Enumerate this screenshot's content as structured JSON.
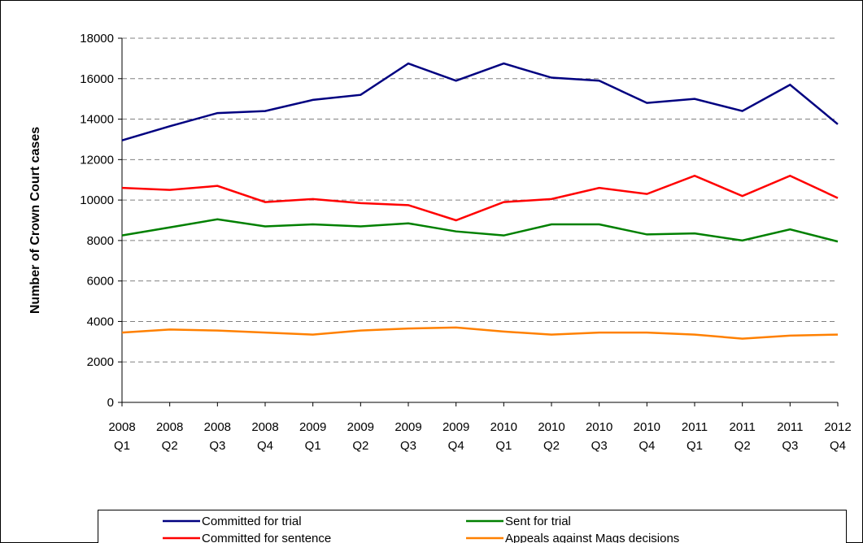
{
  "chart_data": {
    "type": "line",
    "y_label": "Number of Crown Court cases",
    "categories": [
      "2008 Q1",
      "2008 Q2",
      "2008 Q3",
      "2008 Q4",
      "2009 Q1",
      "2009 Q2",
      "2009 Q3",
      "2009 Q4",
      "2010 Q1",
      "2010 Q2",
      "2010 Q3",
      "2010 Q4",
      "2011 Q1",
      "2011 Q2",
      "2011 Q3",
      "2012 Q4"
    ],
    "series": [
      {
        "name": "Committed for trial",
        "color": "#000080",
        "values": [
          12950,
          13650,
          14300,
          14400,
          14950,
          15200,
          16750,
          15900,
          16750,
          16050,
          15900,
          14800,
          15000,
          14400,
          15700,
          13750
        ]
      },
      {
        "name": "Sent for trial",
        "color": "#008000",
        "values": [
          8250,
          8650,
          9050,
          8700,
          8800,
          8700,
          8850,
          8450,
          8250,
          8800,
          8800,
          8300,
          8350,
          8000,
          8550,
          7950
        ]
      },
      {
        "name": "Committed for sentence",
        "color": "#ff0000",
        "values": [
          10600,
          10500,
          10700,
          9900,
          10050,
          9850,
          9750,
          9000,
          9900,
          10050,
          10600,
          10300,
          11200,
          10200,
          11200,
          10100
        ]
      },
      {
        "name": "Appeals against Mags decisions",
        "color": "#ff8000",
        "values": [
          3450,
          3600,
          3550,
          3450,
          3350,
          3550,
          3650,
          3700,
          3500,
          3350,
          3450,
          3450,
          3350,
          3150,
          3300,
          3350
        ]
      }
    ],
    "ylim": [
      0,
      18000
    ],
    "yticks": [
      0,
      2000,
      4000,
      6000,
      8000,
      10000,
      12000,
      14000,
      16000,
      18000
    ],
    "grid": true
  }
}
